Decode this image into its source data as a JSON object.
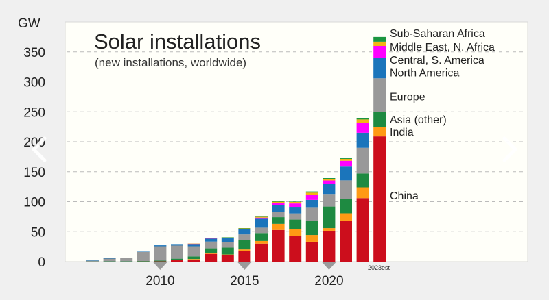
{
  "chart_data": {
    "type": "bar",
    "stacked": true,
    "title": "Solar installations",
    "subtitle": "(new installations, worldwide)",
    "ylabel": "GW",
    "ylim": [
      0,
      400
    ],
    "yticks": [
      0,
      50,
      100,
      150,
      200,
      250,
      300,
      350
    ],
    "ytick_labels": [
      "0",
      "50",
      "100",
      "150",
      "200",
      "250",
      "300",
      "350"
    ],
    "grid": true,
    "legend_placement": "right of last bar",
    "xticks": [
      {
        "year": 2010,
        "label": "2010"
      },
      {
        "year": 2015,
        "label": "2015"
      },
      {
        "year": 2020,
        "label": "2020"
      }
    ],
    "last_bar_note": "2023est",
    "categories": [
      2006,
      2007,
      2008,
      2009,
      2010,
      2011,
      2012,
      2013,
      2014,
      2015,
      2016,
      2017,
      2018,
      2019,
      2020,
      2021,
      2022,
      2023
    ],
    "series": [
      {
        "name": "China",
        "color": "#cc0e1c",
        "values": [
          0,
          0,
          0,
          0.3,
          0.5,
          2.5,
          3.5,
          12.9,
          11.2,
          18.2,
          30,
          52.8,
          43.2,
          33.2,
          51.5,
          68.6,
          106,
          209
        ]
      },
      {
        "name": "India",
        "color": "#ff9a14",
        "values": [
          0,
          0,
          0,
          0,
          0,
          0.3,
          0.9,
          1.1,
          0.7,
          2.2,
          4.4,
          10.2,
          11,
          11.3,
          4.4,
          12,
          18,
          16
        ]
      },
      {
        "name": "Asia (other)",
        "color": "#1e8a41",
        "values": [
          0.3,
          0.5,
          0.5,
          0.8,
          1.2,
          2.2,
          4.3,
          8.2,
          11.5,
          15.8,
          13.3,
          11.2,
          16,
          24,
          36,
          24,
          23,
          25
        ]
      },
      {
        "name": "Europe",
        "color": "#999999",
        "values": [
          1.6,
          5,
          5.5,
          15,
          24,
          21.9,
          17,
          11.3,
          9.5,
          9.3,
          9,
          9.2,
          10.2,
          22.5,
          21,
          31,
          43,
          56
        ]
      },
      {
        "name": "North America",
        "color": "#1b75bb",
        "values": [
          0.1,
          0.2,
          0.3,
          0.6,
          1.6,
          2.4,
          4.2,
          5.3,
          6.7,
          8.5,
          14.8,
          11.1,
          11,
          12,
          17,
          23,
          25,
          34
        ]
      },
      {
        "name": "Central, S. America",
        "color": "#ff00ff",
        "values": [
          0,
          0,
          0,
          0,
          0,
          0,
          0.1,
          0.2,
          0.3,
          0.6,
          1.9,
          2.8,
          5.6,
          7.9,
          5.5,
          9.7,
          17,
          20
        ]
      },
      {
        "name": "Middle East, N. Africa",
        "color": "#f4b414",
        "values": [
          0,
          0,
          0,
          0,
          0,
          0,
          0.1,
          0.3,
          0.5,
          0.8,
          1.5,
          2.5,
          2.5,
          4.2,
          2.6,
          3.2,
          5.3,
          7
        ]
      },
      {
        "name": "Sub-Saharan Africa",
        "color": "#1b9640",
        "values": [
          0,
          0,
          0,
          0,
          0,
          0,
          0,
          0.1,
          0.3,
          0.6,
          0.3,
          1,
          0.7,
          1.9,
          1.4,
          2,
          2.7,
          8
        ]
      }
    ],
    "legend": [
      {
        "name": "Sub-Saharan Africa",
        "anchor_gw": 382
      },
      {
        "name": "Middle East, N. Africa",
        "anchor_gw": 359
      },
      {
        "name": "Central, S. America",
        "anchor_gw": 337
      },
      {
        "name": "North America",
        "anchor_gw": 316
      },
      {
        "name": "Europe",
        "anchor_gw": 276
      },
      {
        "name": "Asia (other)",
        "anchor_gw": 238
      },
      {
        "name": "India",
        "anchor_gw": 217
      },
      {
        "name": "China",
        "anchor_gw": 111
      }
    ]
  },
  "nav": {
    "prev": "chevron-left-icon",
    "next": "chevron-right-icon"
  }
}
